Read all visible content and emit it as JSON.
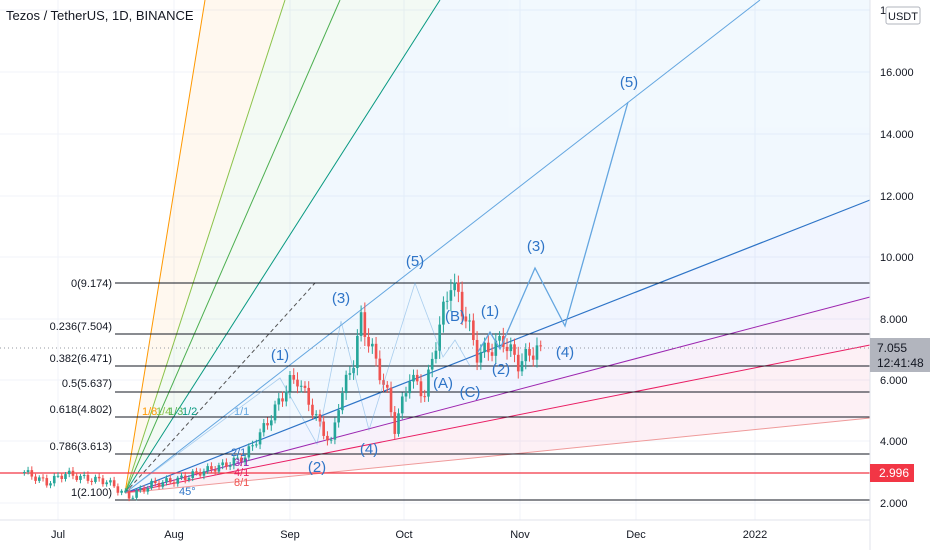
{
  "header": {
    "title": "Tezos / TetherUS, 1D, BINANCE",
    "currency": "USDT"
  },
  "colors": {
    "background": "#ffffff",
    "up_candle": "#26a69a",
    "down_candle": "#ef5350",
    "wave": "#2e74c7",
    "fib_line": "#131722",
    "price_badge": "#b2b5be",
    "red_line": "#f23645"
  },
  "price_scale": {
    "ticks": [
      "18.000",
      "16.000",
      "14.000",
      "12.000",
      "10.000",
      "8.000",
      "6.000",
      "4.000",
      "2.000"
    ],
    "current_price": "7.055",
    "countdown": "12:41:48",
    "red_line_label": "2.996"
  },
  "time_axis": {
    "labels": [
      "Jul",
      "Aug",
      "Sep",
      "Oct",
      "Nov",
      "Dec",
      "2022"
    ]
  },
  "fib_levels": [
    "0(9.174)",
    "0.236(7.504)",
    "0.382(6.471)",
    "0.5(5.637)",
    "0.618(4.802)",
    "0.786(3.613)",
    "1(2.100)"
  ],
  "wave_labels": [
    "(1)",
    "(2)",
    "(3)",
    "(4)",
    "(5)",
    "(A)",
    "(B)",
    "(C)",
    "(1)",
    "(2)",
    "(3)",
    "(4)",
    "(5)"
  ],
  "gann_labels": {
    "fan_top": [
      "1/8",
      "1/4",
      "1/3",
      "1/2",
      "1/1"
    ],
    "fan_bottom": [
      "2/1",
      "3/1",
      "4/1",
      "8/1"
    ],
    "angle": "45°"
  },
  "chart_data": {
    "type": "candlestick",
    "title": "Tezos / TetherUS, 1D, BINANCE",
    "y_unit": "USDT",
    "y_ticks": [
      18,
      16,
      14,
      12,
      10,
      8,
      6,
      4,
      2
    ],
    "x_labels": [
      "Jul",
      "Aug",
      "Sep",
      "Oct",
      "Nov",
      "Dec",
      "2022"
    ],
    "price_path": [
      {
        "date": "2021-06-22",
        "close": 3.0
      },
      {
        "date": "2021-06-28",
        "close": 2.65
      },
      {
        "date": "2021-07-03",
        "close": 2.95
      },
      {
        "date": "2021-07-08",
        "close": 2.8
      },
      {
        "date": "2021-07-14",
        "close": 2.7
      },
      {
        "date": "2021-07-20",
        "close": 2.2
      },
      {
        "date": "2021-07-26",
        "close": 2.6
      },
      {
        "date": "2021-08-02",
        "close": 2.75
      },
      {
        "date": "2021-08-08",
        "close": 3.0
      },
      {
        "date": "2021-08-14",
        "close": 3.2
      },
      {
        "date": "2021-08-20",
        "close": 3.5
      },
      {
        "date": "2021-08-26",
        "close": 4.6
      },
      {
        "date": "2021-09-01",
        "close": 5.9
      },
      {
        "date": "2021-09-03",
        "close": 6.0
      },
      {
        "date": "2021-09-07",
        "close": 5.0
      },
      {
        "date": "2021-09-09",
        "close": 4.5
      },
      {
        "date": "2021-09-12",
        "close": 3.9
      },
      {
        "date": "2021-09-14",
        "close": 5.2
      },
      {
        "date": "2021-09-18",
        "close": 6.6
      },
      {
        "date": "2021-09-20",
        "close": 7.9
      },
      {
        "date": "2021-09-23",
        "close": 6.9
      },
      {
        "date": "2021-09-27",
        "close": 5.5
      },
      {
        "date": "2021-09-29",
        "close": 4.4
      },
      {
        "date": "2021-10-03",
        "close": 6.1
      },
      {
        "date": "2021-10-07",
        "close": 5.5
      },
      {
        "date": "2021-10-10",
        "close": 7.2
      },
      {
        "date": "2021-10-14",
        "close": 9.17
      },
      {
        "date": "2021-10-18",
        "close": 8.0
      },
      {
        "date": "2021-10-21",
        "close": 6.8
      },
      {
        "date": "2021-10-25",
        "close": 7.0
      },
      {
        "date": "2021-10-28",
        "close": 7.25
      },
      {
        "date": "2021-11-01",
        "close": 6.5
      },
      {
        "date": "2021-11-04",
        "close": 6.8
      },
      {
        "date": "2021-11-07",
        "close": 7.055
      }
    ],
    "fib_retracement": [
      {
        "ratio": 0,
        "price": 9.174
      },
      {
        "ratio": 0.236,
        "price": 7.504
      },
      {
        "ratio": 0.382,
        "price": 6.471
      },
      {
        "ratio": 0.5,
        "price": 5.637
      },
      {
        "ratio": 0.618,
        "price": 4.802
      },
      {
        "ratio": 0.786,
        "price": 3.613
      },
      {
        "ratio": 1,
        "price": 2.1
      }
    ],
    "horizontal_line": {
      "price": 2.996,
      "color": "#f23645"
    },
    "projection_path": [
      {
        "date": "2021-11-07",
        "price": 7.055
      },
      {
        "date": "2021-11-13",
        "price": 7.5
      },
      {
        "date": "2021-11-17",
        "price": 7.1
      },
      {
        "date": "2021-11-30",
        "price": 9.6
      },
      {
        "date": "2021-12-09",
        "price": 7.8
      },
      {
        "date": "2021-12-31",
        "price": 15.1
      }
    ],
    "grid": true,
    "legend": "none"
  }
}
